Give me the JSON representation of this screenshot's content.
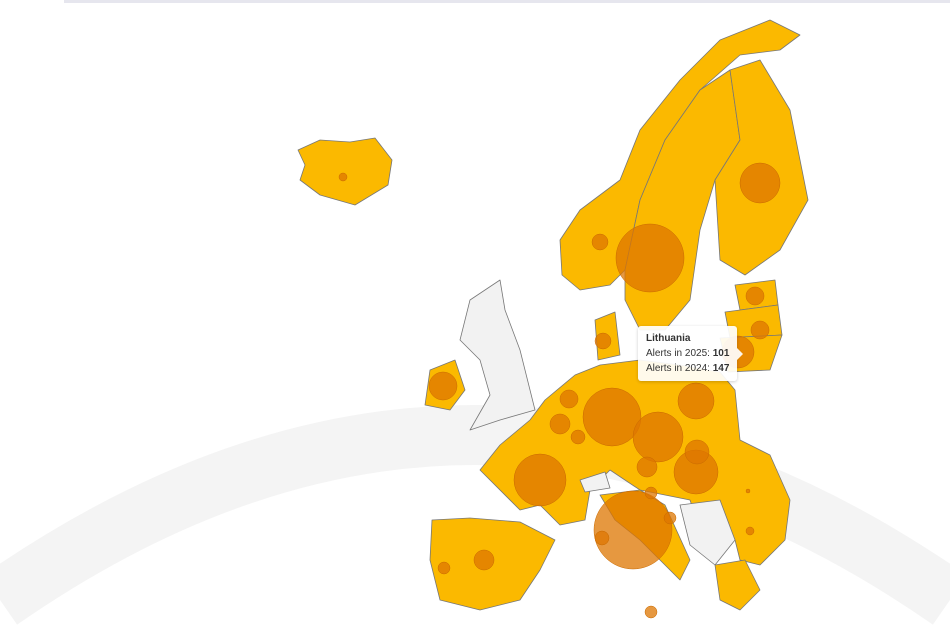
{
  "map": {
    "colors": {
      "in_scheme": "#fbb900",
      "not_in_scheme": "#f2f2f2",
      "border": "#777777",
      "bubble": "#dd7500",
      "background_arc": "#f4f4f4"
    },
    "highlighted_country": "Lithuania"
  },
  "tooltip": {
    "country": "Lithuania",
    "label_2025": "Alerts in 2025:",
    "value_2025": "101",
    "label_2024": "Alerts in 2024:",
    "value_2024": "147"
  }
}
